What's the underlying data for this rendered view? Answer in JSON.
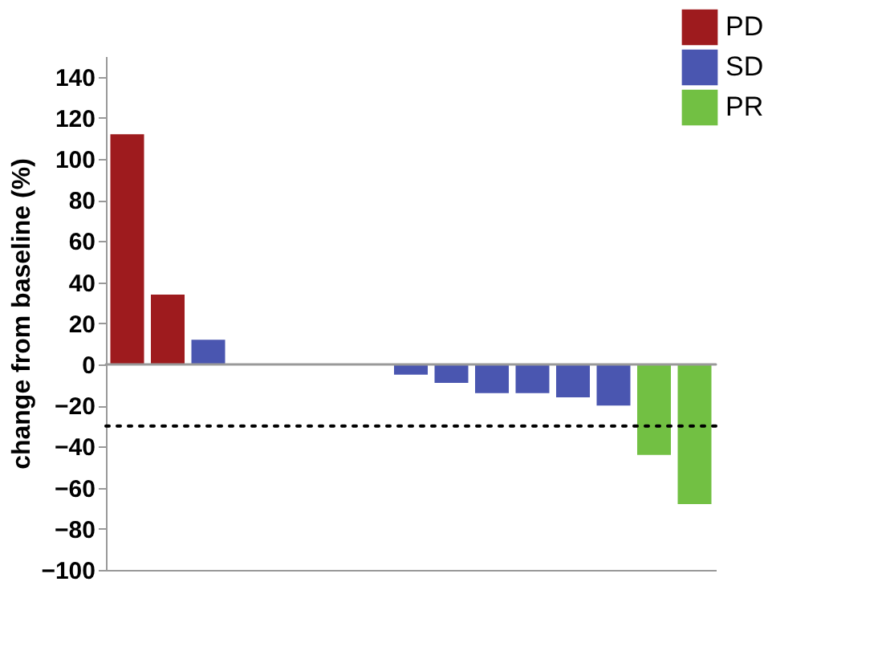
{
  "chart_data": {
    "type": "bar",
    "ylabel": "change from baseline (%)",
    "categories": [
      null,
      null,
      null,
      null,
      null,
      null,
      null,
      null,
      null,
      null,
      null,
      null,
      null,
      null,
      null
    ],
    "series": [
      {
        "name": "PD",
        "color": "#9e1b1e",
        "values": [
          112,
          34,
          null,
          null,
          null,
          null,
          null,
          null,
          null,
          null,
          null,
          null,
          null,
          null,
          null
        ]
      },
      {
        "name": "SD",
        "color": "#4a56b0",
        "values": [
          null,
          null,
          12,
          null,
          null,
          null,
          null,
          -5,
          -9,
          -14,
          -14,
          -16,
          -20,
          null,
          null
        ]
      },
      {
        "name": "PR",
        "color": "#72c043",
        "values": [
          null,
          null,
          null,
          null,
          null,
          null,
          null,
          null,
          null,
          null,
          null,
          null,
          null,
          -44,
          -68
        ]
      }
    ],
    "ylim": [
      -100,
      150
    ],
    "yticks": [
      -100,
      -80,
      -60,
      -40,
      -20,
      0,
      20,
      40,
      60,
      80,
      100,
      120,
      140
    ],
    "ref_lines": [
      {
        "axis": "y",
        "value": 0,
        "color": "#999999",
        "line_style": "solid"
      },
      {
        "axis": "y",
        "value": -30,
        "color": "#000000",
        "line_style": "dotted"
      }
    ],
    "grid": false,
    "legend": "top right",
    "tick_labels": "y"
  }
}
